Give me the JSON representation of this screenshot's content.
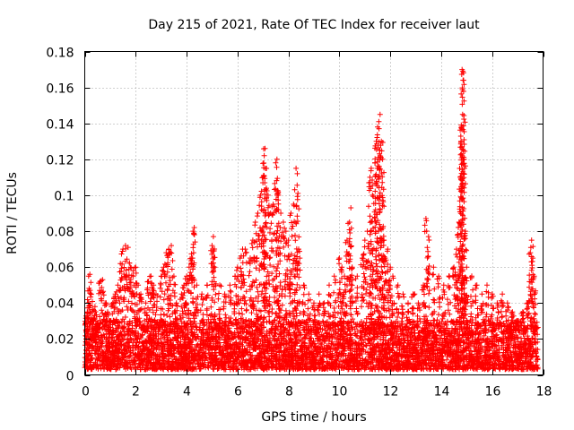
{
  "chart_data": {
    "type": "scatter",
    "title": "Day 215 of 2021, Rate Of TEC Index for receiver laut",
    "xlabel": "GPS time / hours",
    "ylabel": "ROTI / TECUs",
    "xlim": [
      0,
      18
    ],
    "ylim": [
      0,
      0.18
    ],
    "x_ticks": [
      0,
      2,
      4,
      6,
      8,
      10,
      12,
      14,
      16,
      18
    ],
    "y_ticks": [
      0,
      0.02,
      0.04,
      0.06,
      0.08,
      0.1,
      0.12,
      0.14,
      0.16,
      0.18
    ],
    "x_tick_labels": [
      "0",
      "2",
      "4",
      "6",
      "8",
      "10",
      "12",
      "14",
      "16",
      "18"
    ],
    "y_tick_labels": [
      "0",
      "0.02",
      "0.04",
      "0.06",
      "0.08",
      "0.1",
      "0.12",
      "0.14",
      "0.16",
      "0.18"
    ],
    "grid": true,
    "marker": "+",
    "color": "#ff0000",
    "series": [
      {
        "name": "ROTI",
        "note": "dense cloud of samples; representative points below (x in hours, y in TECU/min)",
        "points": [
          [
            0.05,
            0.012
          ],
          [
            0.1,
            0.035
          ],
          [
            0.15,
            0.055
          ],
          [
            0.2,
            0.056
          ],
          [
            0.25,
            0.045
          ],
          [
            0.3,
            0.03
          ],
          [
            0.4,
            0.038
          ],
          [
            0.5,
            0.025
          ],
          [
            0.6,
            0.052
          ],
          [
            0.7,
            0.053
          ],
          [
            0.8,
            0.04
          ],
          [
            0.9,
            0.035
          ],
          [
            1.0,
            0.03
          ],
          [
            1.1,
            0.04
          ],
          [
            1.2,
            0.045
          ],
          [
            1.3,
            0.05
          ],
          [
            1.4,
            0.062
          ],
          [
            1.5,
            0.07
          ],
          [
            1.6,
            0.072
          ],
          [
            1.7,
            0.071
          ],
          [
            1.8,
            0.06
          ],
          [
            1.9,
            0.058
          ],
          [
            2.0,
            0.06
          ],
          [
            2.1,
            0.05
          ],
          [
            2.2,
            0.045
          ],
          [
            2.4,
            0.04
          ],
          [
            2.5,
            0.052
          ],
          [
            2.6,
            0.055
          ],
          [
            2.7,
            0.05
          ],
          [
            2.8,
            0.045
          ],
          [
            3.0,
            0.055
          ],
          [
            3.1,
            0.06
          ],
          [
            3.2,
            0.068
          ],
          [
            3.3,
            0.07
          ],
          [
            3.4,
            0.072
          ],
          [
            3.5,
            0.055
          ],
          [
            3.6,
            0.04
          ],
          [
            3.8,
            0.045
          ],
          [
            3.9,
            0.05
          ],
          [
            4.0,
            0.055
          ],
          [
            4.1,
            0.06
          ],
          [
            4.2,
            0.065
          ],
          [
            4.25,
            0.08
          ],
          [
            4.3,
            0.082
          ],
          [
            4.4,
            0.05
          ],
          [
            4.6,
            0.045
          ],
          [
            4.8,
            0.05
          ],
          [
            5.0,
            0.072
          ],
          [
            5.05,
            0.077
          ],
          [
            5.1,
            0.06
          ],
          [
            5.3,
            0.05
          ],
          [
            5.5,
            0.045
          ],
          [
            5.7,
            0.05
          ],
          [
            5.9,
            0.055
          ],
          [
            6.0,
            0.06
          ],
          [
            6.1,
            0.065
          ],
          [
            6.2,
            0.07
          ],
          [
            6.3,
            0.07
          ],
          [
            6.5,
            0.065
          ],
          [
            6.6,
            0.075
          ],
          [
            6.7,
            0.085
          ],
          [
            6.8,
            0.09
          ],
          [
            6.9,
            0.1
          ],
          [
            7.0,
            0.11
          ],
          [
            7.05,
            0.122
          ],
          [
            7.08,
            0.126
          ],
          [
            7.1,
            0.115
          ],
          [
            7.2,
            0.1
          ],
          [
            7.3,
            0.09
          ],
          [
            7.4,
            0.095
          ],
          [
            7.5,
            0.118
          ],
          [
            7.55,
            0.12
          ],
          [
            7.6,
            0.1
          ],
          [
            7.7,
            0.09
          ],
          [
            7.8,
            0.085
          ],
          [
            7.9,
            0.08
          ],
          [
            8.0,
            0.075
          ],
          [
            8.1,
            0.09
          ],
          [
            8.2,
            0.095
          ],
          [
            8.3,
            0.115
          ],
          [
            8.35,
            0.112
          ],
          [
            8.4,
            0.07
          ],
          [
            8.6,
            0.05
          ],
          [
            8.8,
            0.045
          ],
          [
            9.0,
            0.04
          ],
          [
            9.2,
            0.045
          ],
          [
            9.4,
            0.04
          ],
          [
            9.6,
            0.05
          ],
          [
            9.8,
            0.055
          ],
          [
            10.0,
            0.065
          ],
          [
            10.1,
            0.06
          ],
          [
            10.2,
            0.055
          ],
          [
            10.3,
            0.075
          ],
          [
            10.4,
            0.085
          ],
          [
            10.45,
            0.093
          ],
          [
            10.5,
            0.06
          ],
          [
            10.7,
            0.055
          ],
          [
            10.9,
            0.065
          ],
          [
            11.0,
            0.075
          ],
          [
            11.1,
            0.08
          ],
          [
            11.2,
            0.11
          ],
          [
            11.25,
            0.115
          ],
          [
            11.3,
            0.1
          ],
          [
            11.4,
            0.118
          ],
          [
            11.45,
            0.13
          ],
          [
            11.5,
            0.138
          ],
          [
            11.55,
            0.141
          ],
          [
            11.6,
            0.145
          ],
          [
            11.65,
            0.13
          ],
          [
            11.7,
            0.12
          ],
          [
            11.75,
            0.075
          ],
          [
            11.8,
            0.065
          ],
          [
            11.9,
            0.07
          ],
          [
            12.0,
            0.06
          ],
          [
            12.1,
            0.055
          ],
          [
            12.3,
            0.05
          ],
          [
            12.5,
            0.045
          ],
          [
            12.7,
            0.04
          ],
          [
            12.9,
            0.045
          ],
          [
            13.1,
            0.04
          ],
          [
            13.3,
            0.05
          ],
          [
            13.4,
            0.087
          ],
          [
            13.5,
            0.077
          ],
          [
            13.7,
            0.06
          ],
          [
            13.9,
            0.055
          ],
          [
            14.1,
            0.05
          ],
          [
            14.3,
            0.055
          ],
          [
            14.5,
            0.06
          ],
          [
            14.6,
            0.07
          ],
          [
            14.7,
            0.085
          ],
          [
            14.75,
            0.11
          ],
          [
            14.78,
            0.13
          ],
          [
            14.8,
            0.138
          ],
          [
            14.82,
            0.17
          ],
          [
            14.85,
            0.169
          ],
          [
            14.88,
            0.164
          ],
          [
            14.9,
            0.12
          ],
          [
            14.95,
            0.08
          ],
          [
            15.0,
            0.06
          ],
          [
            15.2,
            0.055
          ],
          [
            15.4,
            0.05
          ],
          [
            15.6,
            0.045
          ],
          [
            15.8,
            0.05
          ],
          [
            16.0,
            0.045
          ],
          [
            16.2,
            0.04
          ],
          [
            16.4,
            0.045
          ],
          [
            16.6,
            0.04
          ],
          [
            16.8,
            0.035
          ],
          [
            17.0,
            0.03
          ],
          [
            17.2,
            0.035
          ],
          [
            17.4,
            0.04
          ],
          [
            17.5,
            0.068
          ],
          [
            17.55,
            0.075
          ],
          [
            17.6,
            0.065
          ],
          [
            17.65,
            0.055
          ],
          [
            17.7,
            0.025
          ]
        ],
        "baseline": {
          "description": "continuous dense band of samples along the bottom",
          "x_range": [
            0,
            17.8
          ],
          "y_range": [
            0.003,
            0.03
          ]
        }
      }
    ]
  }
}
